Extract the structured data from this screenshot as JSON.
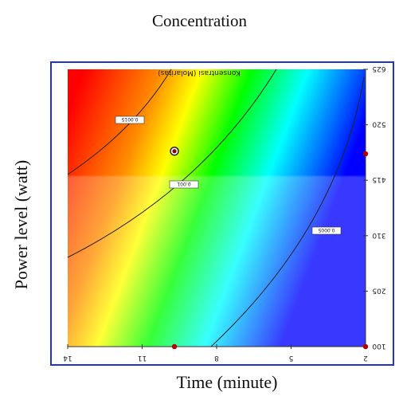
{
  "page": {
    "title": "Concentration"
  },
  "chart_data": {
    "type": "heatmap",
    "title": "Concentration",
    "subtitle": "",
    "inner_title": "Konsentrasi (Molaritas)",
    "xlabel": "Time (minute)",
    "ylabel": "Power level (watt)",
    "x_ticks": [
      "14",
      "11",
      "8",
      "5",
      "2"
    ],
    "y_ticks": [
      "625",
      "520",
      "415",
      "310",
      "205",
      "100"
    ],
    "xlim": [
      2,
      14
    ],
    "ylim": [
      100,
      625
    ],
    "x_reversed": true,
    "colormap": [
      "#ff0000",
      "#ff8800",
      "#ffff00",
      "#00ff00",
      "#00ffff",
      "#0000ff"
    ],
    "contours": [
      {
        "label": "0.0015",
        "value": 0.0015
      },
      {
        "label": "0.001",
        "value": 0.001
      },
      {
        "label": "0.0005",
        "value": 0.0005
      }
    ],
    "optimum_point": {
      "x": 9.7,
      "y": 470
    },
    "design_points": [
      {
        "x": 9.7,
        "y": 100
      },
      {
        "x": 2,
        "y": 100
      },
      {
        "x": 2,
        "y": 465
      }
    ]
  }
}
